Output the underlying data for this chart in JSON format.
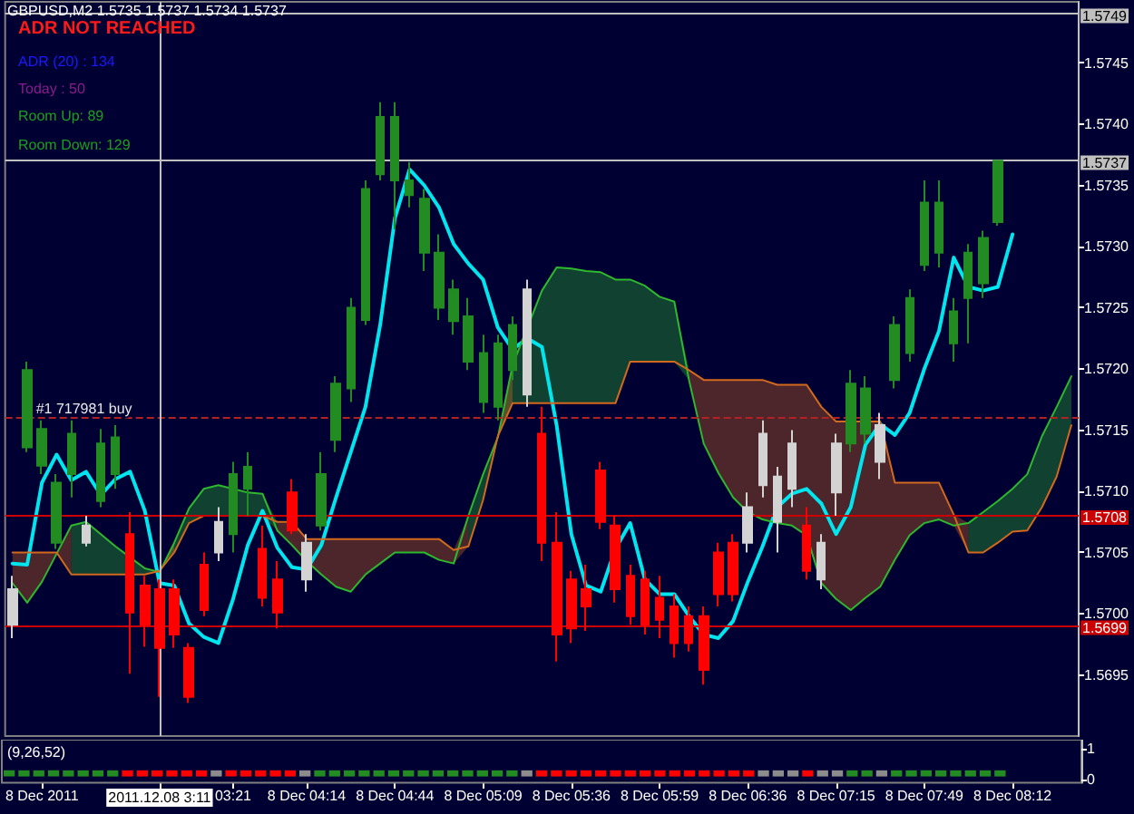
{
  "chart_data": [
    {
      "type": "candlestick",
      "title": "GBPUSD,M2 1.5735 1.5737 1.5734 1.5737",
      "annotations": [
        "ADR NOT REACHED",
        "ADR (20) : 134",
        "Today : 50",
        "Room Up: 89",
        "Room Down: 129"
      ],
      "categories": [
        null,
        null,
        "8 Dec 2011",
        null,
        null,
        null,
        null,
        null,
        null,
        null,
        "2011.12.08 3:11",
        null,
        null,
        null,
        null,
        "03:21",
        null,
        null,
        null,
        null,
        "8 Dec 04:14",
        null,
        null,
        null,
        null,
        null,
        "8 Dec 04:44",
        null,
        null,
        null,
        null,
        null,
        "8 Dec 05:09",
        null,
        null,
        null,
        null,
        null,
        "8 Dec 05:36",
        null,
        null,
        null,
        null,
        null,
        "8 Dec 05:59",
        null,
        null,
        null,
        null,
        null,
        "8 Dec 06:36",
        null,
        null,
        null,
        null,
        null,
        "8 Dec 07:15",
        null,
        null,
        null,
        null,
        null,
        "8 Dec 07:49",
        null,
        null,
        null,
        null,
        null,
        "8 Dec 08:12",
        null,
        null,
        null,
        null
      ],
      "ohlc": [
        [
          1.56991,
          1.57031,
          1.5698,
          1.5702
        ],
        [
          1.57136,
          1.57206,
          1.57132,
          1.57199
        ],
        [
          1.57121,
          1.57158,
          1.57114,
          1.57151
        ],
        [
          1.57058,
          1.57114,
          1.57053,
          1.57107
        ],
        [
          1.57114,
          1.57158,
          1.57095,
          1.57147
        ],
        [
          1.57058,
          1.5708,
          1.57055,
          1.57072
        ],
        [
          1.57092,
          1.57151,
          1.57087,
          1.57139
        ],
        [
          1.57114,
          1.57154,
          1.57102,
          1.57144
        ],
        [
          1.57065,
          1.57083,
          1.56951,
          1.57001
        ],
        [
          1.57023,
          1.57031,
          1.56973,
          1.56991
        ],
        [
          1.5702,
          1.57028,
          1.56932,
          1.56972
        ],
        [
          1.5702,
          1.57028,
          1.56972,
          1.56983
        ],
        [
          1.56972,
          1.56976,
          1.56927,
          1.56932
        ],
        [
          1.5704,
          1.5705,
          1.56998,
          1.57003
        ],
        [
          1.5705,
          1.57087,
          1.57043,
          1.57075
        ],
        [
          1.57065,
          1.57124,
          1.5705,
          1.57114
        ],
        [
          1.57102,
          1.57132,
          1.5708,
          1.5712
        ],
        [
          1.57053,
          1.57072,
          1.57006,
          1.57013
        ],
        [
          1.57028,
          1.57043,
          1.56988,
          1.57001
        ],
        [
          1.57099,
          1.5711,
          1.57065,
          1.57068
        ],
        [
          1.57028,
          1.57065,
          1.57018,
          1.57058
        ],
        [
          1.57072,
          1.57132,
          1.57068,
          1.57114
        ],
        [
          1.57142,
          1.57194,
          1.57132,
          1.57188
        ],
        [
          1.57184,
          1.57258,
          1.57173,
          1.5725
        ],
        [
          1.5724,
          1.57354,
          1.57236,
          1.57347
        ],
        [
          1.57359,
          1.57418,
          1.57354,
          1.57406
        ],
        [
          1.57354,
          1.57418,
          1.57314,
          1.57406
        ],
        [
          1.57342,
          1.57369,
          1.57332,
          1.57354
        ],
        [
          1.57295,
          1.57347,
          1.5728,
          1.57339
        ],
        [
          1.5725,
          1.5731,
          1.5724,
          1.57295
        ],
        [
          1.57239,
          1.57273,
          1.57228,
          1.57265
        ],
        [
          1.57206,
          1.57258,
          1.57199,
          1.57243
        ],
        [
          1.57173,
          1.57228,
          1.57164,
          1.57213
        ],
        [
          1.57169,
          1.57228,
          1.57158,
          1.57221
        ],
        [
          1.57199,
          1.57243,
          1.57191,
          1.57236
        ],
        [
          1.57179,
          1.57273,
          1.57169,
          1.57265
        ],
        [
          1.57147,
          1.57169,
          1.57043,
          1.57058
        ],
        [
          1.57058,
          1.57083,
          1.56961,
          1.56983
        ],
        [
          1.57028,
          1.57035,
          1.56976,
          1.56988
        ],
        [
          1.5702,
          1.5704,
          1.56986,
          1.57006
        ],
        [
          1.57117,
          1.57124,
          1.57069,
          1.57075
        ],
        [
          1.57072,
          1.5708,
          1.57009,
          1.5702
        ],
        [
          1.57031,
          1.5704,
          1.56991,
          1.56998
        ],
        [
          1.57028,
          1.57035,
          1.56983,
          1.56991
        ],
        [
          1.57013,
          1.57031,
          1.5698,
          1.56995
        ],
        [
          1.57006,
          1.57016,
          1.56964,
          1.56976
        ],
        [
          1.56998,
          1.57006,
          1.56969,
          1.56976
        ],
        [
          1.56998,
          1.57006,
          1.56942,
          1.56954
        ],
        [
          1.5705,
          1.57058,
          1.57006,
          1.57016
        ],
        [
          1.57058,
          1.57065,
          1.5701,
          1.57016
        ],
        [
          1.57058,
          1.57099,
          1.5705,
          1.57087
        ],
        [
          1.57105,
          1.57158,
          1.57095,
          1.57147
        ],
        [
          1.57075,
          1.5712,
          1.5705,
          1.57112
        ],
        [
          1.57102,
          1.5715,
          1.57087,
          1.57139
        ],
        [
          1.57072,
          1.57087,
          1.57028,
          1.57035
        ],
        [
          1.57028,
          1.57065,
          1.5702,
          1.57058
        ],
        [
          1.57099,
          1.57147,
          1.5708,
          1.57139
        ],
        [
          1.57139,
          1.57199,
          1.57132,
          1.57188
        ],
        [
          1.57147,
          1.57194,
          1.57139,
          1.57184
        ],
        [
          1.57124,
          1.57164,
          1.5711,
          1.57154
        ],
        [
          1.57191,
          1.57243,
          1.57184,
          1.57236
        ],
        [
          1.57213,
          1.57265,
          1.57206,
          1.57258
        ],
        [
          1.57285,
          1.57354,
          1.5728,
          1.57336
        ],
        [
          1.57295,
          1.57354,
          1.57283,
          1.57336
        ],
        [
          1.57221,
          1.57258,
          1.57206,
          1.57247
        ],
        [
          1.57258,
          1.57302,
          1.57221,
          1.57295
        ],
        [
          1.5727,
          1.57313,
          1.57258,
          1.57307
        ],
        [
          1.5732,
          1.5737,
          1.57317,
          1.5737
        ],
        null,
        null,
        null,
        null,
        null
      ],
      "colors": [
        "#d3d3d3",
        "#228b22",
        "#228b22",
        "#228b22",
        "#228b22",
        "#d3d3d3",
        "#228b22",
        "#228b22",
        "#ff0000",
        "#ff0000",
        "#ff0000",
        "#ff0000",
        "#ff0000",
        "#ff0000",
        "#d3d3d3",
        "#228b22",
        "#228b22",
        "#ff0000",
        "#ff0000",
        "#ff0000",
        "#d3d3d3",
        "#228b22",
        "#228b22",
        "#228b22",
        "#228b22",
        "#228b22",
        "#228b22",
        "#228b22",
        "#228b22",
        "#228b22",
        "#228b22",
        "#228b22",
        "#228b22",
        "#228b22",
        "#228b22",
        "#d3d3d3",
        "#ff0000",
        "#ff0000",
        "#ff0000",
        "#ff0000",
        "#ff0000",
        "#ff0000",
        "#ff0000",
        "#ff0000",
        "#ff0000",
        "#ff0000",
        "#ff0000",
        "#ff0000",
        "#ff0000",
        "#ff0000",
        "#d3d3d3",
        "#d3d3d3",
        "#d3d3d3",
        "#d3d3d3",
        "#ff0000",
        "#d3d3d3",
        "#d3d3d3",
        "#228b22",
        "#228b22",
        "#d3d3d3",
        "#228b22",
        "#228b22",
        "#228b22",
        "#228b22",
        "#228b22",
        "#228b22",
        "#228b22",
        "#228b22",
        null,
        null,
        null,
        null,
        null
      ],
      "series": [
        {
          "type": "line",
          "color": "#00e5ee",
          "values": [
            1.57041,
            1.5704,
            1.57107,
            1.5713,
            1.57109,
            1.57116,
            1.57097,
            1.5711,
            1.57116,
            1.57084,
            1.57025,
            1.57023,
            1.56992,
            1.56981,
            1.56976,
            1.57012,
            1.57056,
            1.57084,
            1.57054,
            1.57038,
            1.57036,
            1.57056,
            1.57095,
            1.57132,
            1.57169,
            1.57236,
            1.57323,
            1.57363,
            1.5735,
            1.57332,
            1.57302,
            1.57286,
            1.57273,
            1.57234,
            1.57216,
            1.57225,
            1.57218,
            1.57154,
            1.57065,
            1.57023,
            1.57018,
            1.57053,
            1.57074,
            1.57028,
            1.57016,
            1.57016,
            1.56998,
            1.56983,
            1.5698,
            1.56994,
            1.57026,
            1.57055,
            1.57087,
            1.57098,
            1.57102,
            1.5709,
            1.57065,
            1.57087,
            1.57138,
            1.57155,
            1.57146,
            1.57164,
            1.572,
            1.57231,
            1.57291,
            1.57267,
            1.57264,
            1.57267,
            1.5731,
            null,
            null,
            null,
            null
          ]
        },
        {
          "type": "line",
          "color": "#2eb82e",
          "values": [
            1.57025,
            1.57009,
            1.57026,
            1.57049,
            1.57072,
            1.57075,
            1.57065,
            1.57055,
            1.57046,
            1.57037,
            1.57034,
            1.57058,
            1.57086,
            1.57102,
            1.57105,
            1.57102,
            1.57099,
            1.57098,
            1.57068,
            1.57056,
            1.57043,
            1.57032,
            1.57022,
            1.57018,
            1.57032,
            1.57041,
            1.5705,
            1.5705,
            1.5705,
            1.57044,
            1.57041,
            1.5708,
            1.57114,
            1.57144,
            1.57203,
            null,
            1.57264,
            1.57283,
            1.57282,
            1.5728,
            1.57279,
            1.57273,
            1.57273,
            1.57268,
            1.57259,
            1.57255,
            1.57191,
            1.57139,
            1.57115,
            1.57095,
            1.57083,
            1.57077,
            1.57074,
            1.57072,
            1.57064,
            1.57025,
            1.57012,
            1.57003,
            1.57013,
            1.57022,
            1.57044,
            1.57064,
            1.57074,
            1.57077,
            1.57072,
            1.57074,
            1.57083,
            1.57092,
            1.57102,
            1.57114,
            1.57145,
            1.57169,
            1.57194
          ],
          "lower": [
            null,
            null,
            null,
            null,
            1.57032,
            1.57032,
            1.57032,
            1.57032,
            1.57032,
            1.57032,
            1.57034,
            1.5705,
            1.57074,
            1.5708,
            1.5708,
            1.5708,
            1.5708,
            1.5708,
            1.57068,
            null,
            null,
            null,
            null,
            null,
            null,
            null,
            null,
            null,
            null,
            null,
            null,
            1.57055,
            1.57093,
            1.57144,
            1.57172,
            1.57172,
            1.57172,
            1.57172,
            1.57172,
            1.57172,
            1.57172,
            1.57172,
            1.57206,
            1.57206,
            1.57206,
            1.57206,
            1.57191,
            null,
            null,
            null,
            null,
            null,
            null,
            null,
            null,
            null,
            null,
            null,
            null,
            null,
            null,
            null,
            null,
            null,
            null,
            1.5705,
            1.5705,
            1.57058,
            1.57067,
            1.57068,
            1.57087,
            1.57112,
            1.57154
          ],
          "upper": [
            null,
            null,
            null,
            null,
            1.57072,
            1.57075,
            1.57065,
            1.57055,
            1.57046,
            1.57037,
            1.57035,
            1.57058,
            1.57086,
            1.57102,
            1.57105,
            1.57102,
            1.57099,
            1.57098,
            1.57075,
            null,
            null,
            null,
            null,
            null,
            null,
            null,
            null,
            null,
            null,
            null,
            null,
            1.5708,
            1.57114,
            1.57145,
            1.57203,
            1.57233,
            1.57264,
            1.57283,
            1.57282,
            1.5728,
            1.57279,
            1.57273,
            1.57273,
            1.57268,
            1.57259,
            1.57255,
            1.57199,
            null,
            null,
            null,
            null,
            null,
            null,
            null,
            null,
            null,
            null,
            null,
            null,
            null,
            null,
            null,
            null,
            null,
            null,
            1.57074,
            1.57083,
            1.57092,
            1.57102,
            1.57114,
            1.57145,
            1.57169,
            1.57194
          ]
        },
        {
          "type": "line",
          "color": "#d2691e",
          "values": [
            1.5705,
            1.5705,
            1.5705,
            1.5705,
            1.57032,
            1.57032,
            1.57032,
            1.57032,
            1.57032,
            1.57032,
            1.57035,
            1.5705,
            1.57074,
            1.5708,
            1.5708,
            null,
            1.5708,
            1.5708,
            1.57075,
            1.57075,
            1.57061,
            1.57061,
            1.57061,
            1.57061,
            1.57061,
            1.57061,
            1.57061,
            1.57061,
            1.57061,
            1.57061,
            1.57052,
            1.57055,
            1.57093,
            1.57145,
            1.57172,
            1.57172,
            1.57172,
            1.57172,
            1.57172,
            1.57172,
            1.57172,
            1.57172,
            1.57206,
            1.57206,
            1.57206,
            1.57206,
            1.57199,
            1.57191,
            1.57191,
            1.57191,
            1.57191,
            1.57191,
            1.57187,
            1.57187,
            1.57187,
            1.57169,
            1.57157,
            1.57157,
            1.57157,
            1.57157,
            1.57107,
            1.57107,
            1.57107,
            1.57107,
            1.57081,
            1.5705,
            1.5705,
            1.57058,
            1.57067,
            1.57068,
            1.57087,
            1.57112,
            1.57154
          ],
          "lower": [
            1.57025,
            1.57009,
            1.57026,
            1.57049,
            1.57032,
            null,
            null,
            null,
            null,
            null,
            1.57034,
            1.5705,
            null,
            null,
            null,
            null,
            null,
            null,
            1.57068,
            1.57056,
            1.57043,
            1.57032,
            1.57022,
            1.57018,
            1.57032,
            1.57041,
            1.5705,
            1.5705,
            1.5705,
            1.57044,
            1.57041,
            1.57055,
            null,
            1.57144,
            1.57172,
            null,
            null,
            null,
            null,
            null,
            null,
            null,
            null,
            null,
            null,
            null,
            1.57191,
            1.57139,
            1.57115,
            1.57095,
            1.57083,
            1.57077,
            1.57074,
            1.57072,
            1.57064,
            1.57025,
            1.57012,
            1.57003,
            1.57013,
            1.57022,
            1.57044,
            1.57064,
            1.57074,
            1.57077,
            1.57072,
            1.5705,
            null,
            null,
            null,
            null,
            null,
            null,
            null
          ],
          "upper": [
            1.5705,
            1.5705,
            1.5705,
            1.5705,
            1.57072,
            null,
            null,
            null,
            null,
            null,
            1.57035,
            1.57058,
            null,
            null,
            null,
            null,
            null,
            null,
            1.57075,
            1.57075,
            1.57061,
            1.57061,
            1.57061,
            1.57061,
            1.57061,
            1.57061,
            1.57061,
            1.57061,
            1.57061,
            1.57061,
            1.57052,
            1.5708,
            null,
            1.57145,
            1.57203,
            null,
            null,
            null,
            null,
            null,
            null,
            null,
            null,
            null,
            null,
            null,
            1.57199,
            1.57191,
            1.57191,
            1.57191,
            1.57191,
            1.57191,
            1.57187,
            1.57187,
            1.57187,
            1.57169,
            1.57157,
            1.57157,
            1.57157,
            1.57157,
            1.57107,
            1.57107,
            1.57107,
            1.57107,
            1.57081,
            1.57074,
            null,
            null,
            null,
            null,
            null,
            null,
            null
          ]
        }
      ],
      "ylim": [
        1.569,
        1.575
      ],
      "yticks": [
        1.5695,
        {
          "value": 1.57,
          "label": "1.5700"
        },
        1.5705,
        {
          "value": 1.571,
          "label": "1.5710"
        },
        1.5715,
        {
          "value": 1.572,
          "label": "1.5720"
        },
        1.5725,
        {
          "value": 1.573,
          "label": "1.5730"
        },
        1.5735,
        {
          "value": 1.574,
          "label": "1.5740"
        },
        1.5745
      ],
      "ref_lines": [
        {
          "axis": "y",
          "value": 1.5749,
          "label": "1.5749",
          "color": "#c0c0c0"
        },
        {
          "axis": "y",
          "value": 1.5737,
          "label": "1.5737",
          "color": "#c0c0c0"
        },
        {
          "axis": "y",
          "value": 1.5716,
          "label": "#1 717981 buy",
          "color": "#b22222",
          "line_style": "dashed"
        },
        {
          "axis": "y",
          "value": 1.5708,
          "label": "1.5708",
          "color": "#cc0000"
        },
        {
          "axis": "y",
          "value": 1.5699,
          "label": "1.5699",
          "color": "#cc0000"
        },
        {
          "axis": "x",
          "value": "2011.12.08 3:11",
          "color": "#c0c0c0"
        }
      ]
    },
    {
      "type": "bar",
      "title": "(9,26,52)",
      "categories": [
        null,
        null,
        null,
        null,
        null,
        null,
        null,
        null,
        null,
        null,
        null,
        null,
        null,
        null,
        null,
        null,
        null,
        null,
        null,
        null,
        null,
        null,
        null,
        null,
        null,
        null,
        null,
        null,
        null,
        null,
        null,
        null,
        null,
        null,
        null,
        null,
        null,
        null,
        null,
        null,
        null,
        null,
        null,
        null,
        null,
        null,
        null,
        null,
        null,
        null,
        null,
        null,
        null,
        null,
        null,
        null,
        null,
        null,
        null,
        null,
        null,
        null,
        null,
        null,
        null,
        null,
        null,
        null,
        null,
        null,
        null,
        null,
        null
      ],
      "values": [
        0.2,
        0.2,
        0.2,
        0.2,
        0.2,
        0.2,
        0.2,
        0.2,
        0.2,
        0.2,
        0.2,
        0.2,
        0.2,
        0.2,
        0.2,
        0.2,
        0.2,
        0.2,
        0.2,
        0.2,
        0.2,
        0.2,
        0.2,
        0.2,
        0.2,
        0.2,
        0.2,
        0.2,
        0.2,
        0.2,
        0.2,
        0.2,
        0.2,
        0.2,
        0.2,
        0.2,
        0.2,
        0.2,
        0.2,
        0.2,
        0.2,
        0.2,
        0.2,
        0.2,
        0.2,
        0.2,
        0.2,
        0.2,
        0.2,
        0.2,
        0.2,
        0.2,
        0.2,
        0.2,
        0.2,
        0.2,
        0.2,
        0.2,
        0.2,
        0.2,
        0.2,
        0.2,
        0.2,
        0.2,
        0.2,
        0.2,
        0.2,
        0.2,
        null,
        null,
        null,
        null,
        null
      ],
      "base": [
        0.1,
        0.1,
        0.1,
        0.1,
        0.1,
        0.1,
        0.1,
        0.1,
        0.1,
        0.1,
        0.1,
        0.1,
        0.1,
        0.1,
        0.1,
        0.1,
        0.1,
        0.1,
        0.1,
        0.1,
        0.1,
        0.1,
        0.1,
        0.1,
        0.1,
        0.1,
        0.1,
        0.1,
        0.1,
        0.1,
        0.1,
        0.1,
        0.1,
        0.1,
        0.1,
        0.1,
        0.1,
        0.1,
        0.1,
        0.1,
        0.1,
        0.1,
        0.1,
        0.1,
        0.1,
        0.1,
        0.1,
        0.1,
        0.1,
        0.1,
        0.1,
        0.1,
        0.1,
        0.1,
        0.1,
        0.1,
        0.1,
        0.1,
        0.1,
        0.1,
        0.1,
        0.1,
        0.1,
        0.1,
        0.1,
        0.1,
        0.1,
        0.1,
        null,
        null,
        null,
        null,
        null
      ],
      "colors": [
        "#228b22",
        "#228b22",
        "#228b22",
        "#228b22",
        "#228b22",
        "#228b22",
        "#228b22",
        "#228b22",
        "#ff0000",
        "#ff0000",
        "#ff0000",
        "#ff0000",
        "#ff0000",
        "#ff0000",
        "#8c8c8c",
        "#ff0000",
        "#ff0000",
        "#ff0000",
        "#ff0000",
        "#ff0000",
        "#8c8c8c",
        "#228b22",
        "#228b22",
        "#228b22",
        "#228b22",
        "#228b22",
        "#228b22",
        "#228b22",
        "#228b22",
        "#228b22",
        "#228b22",
        "#228b22",
        "#228b22",
        "#228b22",
        "#228b22",
        "#8c8c8c",
        "#ff0000",
        "#ff0000",
        "#ff0000",
        "#ff0000",
        "#ff0000",
        "#ff0000",
        "#ff0000",
        "#ff0000",
        "#ff0000",
        "#ff0000",
        "#ff0000",
        "#ff0000",
        "#ff0000",
        "#ff0000",
        "#ff0000",
        "#8c8c8c",
        "#8c8c8c",
        "#8c8c8c",
        "#ff0000",
        "#8c8c8c",
        "#8c8c8c",
        "#228b22",
        "#228b22",
        "#8c8c8c",
        "#228b22",
        "#228b22",
        "#228b22",
        "#228b22",
        "#228b22",
        "#228b22",
        "#228b22",
        "#228b22",
        null,
        null,
        null,
        null,
        null
      ],
      "ylim": [
        -0.1,
        1.3
      ],
      "yticks": [
        0,
        1
      ],
      "tick_labels": "y"
    }
  ]
}
